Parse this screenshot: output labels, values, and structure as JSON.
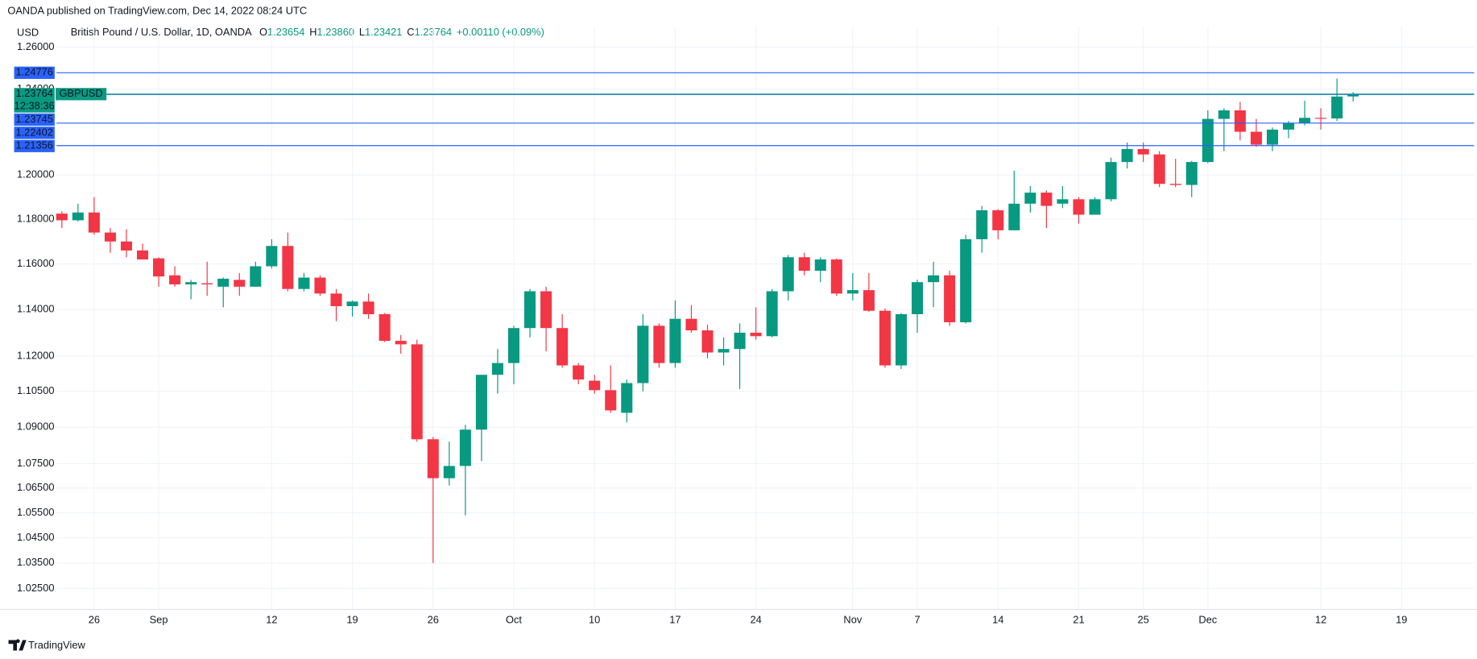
{
  "header": {
    "publisher": "OANDA published on TradingView.com, Dec 14, 2022 08:24 UTC",
    "currency": "USD",
    "footer": "TradingView"
  },
  "chart_data": {
    "type": "candlestick",
    "title": "British Pound / U.S. Dollar, 1D, OANDA",
    "ohlc_legend": [
      {
        "key": "O",
        "value": "1.23654"
      },
      {
        "key": "H",
        "value": "1.23860"
      },
      {
        "key": "L",
        "value": "1.23421"
      },
      {
        "key": "C",
        "value": "1.23764"
      }
    ],
    "change": "+0.00110 (+0.09%)",
    "symbol": "GBPUSD",
    "countdown": "12:38:36",
    "up_color": "#089981",
    "down_color": "#f23645",
    "line_color": "#2962ff",
    "log_scale": true,
    "grid": true,
    "ylim": [
      1.017,
      1.27
    ],
    "yticks": [
      {
        "value": 1.26,
        "label": "1.26000"
      },
      {
        "value": 1.24,
        "label": "1.24000"
      },
      {
        "value": 1.2,
        "label": "1.20000"
      },
      {
        "value": 1.18,
        "label": "1.18000"
      },
      {
        "value": 1.16,
        "label": "1.16000"
      },
      {
        "value": 1.14,
        "label": "1.14000"
      },
      {
        "value": 1.12,
        "label": "1.12000"
      },
      {
        "value": 1.105,
        "label": "1.10500"
      },
      {
        "value": 1.09,
        "label": "1.09000"
      },
      {
        "value": 1.075,
        "label": "1.07500"
      },
      {
        "value": 1.065,
        "label": "1.06500"
      },
      {
        "value": 1.055,
        "label": "1.05500"
      },
      {
        "value": 1.045,
        "label": "1.04500"
      },
      {
        "value": 1.035,
        "label": "1.03500"
      },
      {
        "value": 1.025,
        "label": "1.02500"
      }
    ],
    "price_lines": [
      1.24776,
      1.23745,
      1.22402,
      1.21356
    ],
    "categories": [
      null,
      null,
      "26",
      null,
      null,
      null,
      "Sep",
      null,
      null,
      null,
      null,
      null,
      null,
      "12",
      null,
      null,
      null,
      null,
      "19",
      null,
      null,
      null,
      null,
      "26",
      null,
      null,
      null,
      null,
      "Oct",
      null,
      null,
      null,
      null,
      "10",
      null,
      null,
      null,
      null,
      "17",
      null,
      null,
      null,
      null,
      "24",
      null,
      null,
      null,
      null,
      null,
      "Nov",
      null,
      null,
      null,
      "7",
      null,
      null,
      null,
      null,
      "14",
      null,
      null,
      null,
      null,
      "21",
      null,
      null,
      null,
      "25",
      null,
      null,
      null,
      "Dec",
      null,
      null,
      null,
      null,
      null,
      null,
      "12",
      null,
      null,
      null,
      null,
      "19",
      null,
      null,
      null,
      null
    ],
    "open": [
      1.1825,
      1.1795,
      1.183,
      1.174,
      1.17,
      1.166,
      1.1625,
      1.155,
      1.151,
      1.1515,
      1.15,
      1.153,
      1.15,
      1.159,
      1.168,
      1.149,
      1.154,
      1.147,
      1.1415,
      1.1435,
      1.138,
      1.1265,
      1.125,
      1.085,
      1.069,
      1.074,
      1.089,
      1.112,
      1.117,
      1.132,
      1.148,
      1.132,
      1.116,
      1.1095,
      1.1055,
      1.096,
      1.1085,
      1.133,
      1.117,
      1.136,
      1.131,
      1.1215,
      1.123,
      1.13,
      1.1285,
      1.148,
      1.163,
      1.157,
      1.162,
      1.147,
      1.1485,
      1.1395,
      1.116,
      1.138,
      1.152,
      1.155,
      1.1345,
      1.171,
      1.184,
      1.175,
      1.187,
      1.192,
      1.187,
      1.189,
      1.182,
      1.189,
      1.206,
      1.212,
      1.2095,
      1.196,
      1.1955,
      1.206,
      1.226,
      1.23,
      1.22,
      1.214,
      1.221,
      1.224,
      1.2265,
      1.2262,
      1.23654,
      null,
      null,
      null,
      null,
      null,
      null,
      null
    ],
    "high": [
      1.1835,
      1.187,
      1.19,
      1.176,
      1.1755,
      1.169,
      1.163,
      1.159,
      1.153,
      1.161,
      1.154,
      1.156,
      1.161,
      1.171,
      1.174,
      1.156,
      1.155,
      1.149,
      1.144,
      1.147,
      1.1385,
      1.129,
      1.127,
      1.086,
      1.084,
      1.091,
      1.112,
      1.123,
      1.133,
      1.149,
      1.15,
      1.138,
      1.117,
      1.112,
      1.116,
      1.11,
      1.138,
      1.134,
      1.144,
      1.142,
      1.1335,
      1.128,
      1.134,
      1.141,
      1.149,
      1.164,
      1.165,
      1.163,
      1.1625,
      1.156,
      1.156,
      1.1405,
      1.1385,
      1.153,
      1.161,
      1.157,
      1.173,
      1.186,
      1.1845,
      1.202,
      1.195,
      1.193,
      1.195,
      1.19,
      1.19,
      1.208,
      1.215,
      1.215,
      1.211,
      1.2075,
      1.2065,
      1.23,
      1.231,
      1.234,
      1.226,
      1.222,
      1.225,
      1.2345,
      1.231,
      1.245,
      1.2386,
      null,
      null,
      null,
      null,
      null,
      null,
      null
    ],
    "low": [
      1.176,
      1.179,
      1.173,
      1.165,
      1.163,
      1.162,
      1.15,
      1.15,
      1.1445,
      1.146,
      1.141,
      1.146,
      1.15,
      1.158,
      1.148,
      1.148,
      1.146,
      1.135,
      1.137,
      1.136,
      1.126,
      1.121,
      1.084,
      1.035,
      1.066,
      1.054,
      1.076,
      1.104,
      1.108,
      1.128,
      1.122,
      1.115,
      1.108,
      1.104,
      1.096,
      1.092,
      1.105,
      1.115,
      1.115,
      1.13,
      1.119,
      1.116,
      1.106,
      1.127,
      1.128,
      1.144,
      1.155,
      1.152,
      1.146,
      1.144,
      1.139,
      1.115,
      1.1145,
      1.13,
      1.141,
      1.133,
      1.134,
      1.165,
      1.171,
      1.175,
      1.183,
      1.176,
      1.185,
      1.178,
      1.182,
      1.188,
      1.203,
      1.206,
      1.1945,
      1.1945,
      1.19,
      1.2055,
      1.211,
      1.216,
      1.213,
      1.211,
      1.217,
      1.223,
      1.221,
      1.225,
      1.23421,
      null,
      null,
      null,
      null,
      null,
      null,
      null
    ],
    "close": [
      1.1795,
      1.183,
      1.174,
      1.17,
      1.166,
      1.162,
      1.1545,
      1.151,
      1.152,
      1.151,
      1.1535,
      1.15,
      1.159,
      1.168,
      1.149,
      1.154,
      1.147,
      1.1415,
      1.1435,
      1.138,
      1.1265,
      1.125,
      1.085,
      1.069,
      1.074,
      1.089,
      1.112,
      1.117,
      1.132,
      1.148,
      1.132,
      1.116,
      1.11,
      1.1055,
      1.097,
      1.1085,
      1.133,
      1.117,
      1.136,
      1.131,
      1.1215,
      1.123,
      1.13,
      1.1285,
      1.148,
      1.163,
      1.157,
      1.162,
      1.147,
      1.1485,
      1.1395,
      1.116,
      1.138,
      1.152,
      1.155,
      1.1345,
      1.171,
      1.184,
      1.175,
      1.187,
      1.192,
      1.186,
      1.189,
      1.182,
      1.189,
      1.206,
      1.212,
      1.2095,
      1.196,
      1.1955,
      1.206,
      1.226,
      1.23,
      1.22,
      1.214,
      1.221,
      1.224,
      1.2265,
      1.2262,
      1.2365,
      1.23764,
      null,
      null,
      null,
      null,
      null,
      null,
      null
    ]
  }
}
